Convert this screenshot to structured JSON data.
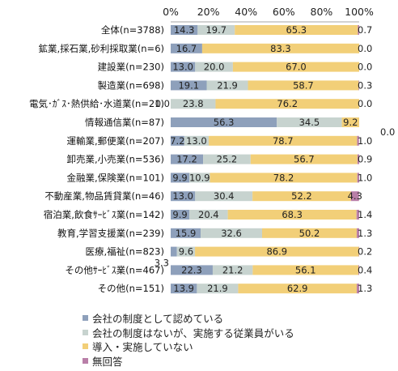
{
  "chart_data": {
    "type": "bar",
    "stacked": true,
    "orientation": "horizontal",
    "x_ticks": [
      "0%",
      "20%",
      "40%",
      "60%",
      "80%",
      "100%"
    ],
    "xlim": [
      0,
      100
    ],
    "grid": false,
    "legend_position": "bottom",
    "categories": [
      "全体(n=3788)",
      "鉱業,採石業,砂利採取業(n=6)",
      "建設業(n=230)",
      "製造業(n=698)",
      "電気･ｶﾞｽ･熱供給･水道業(n=21)",
      "情報通信業(n=87)",
      "運輸業,郵便業(n=207)",
      "卸売業,小売業(n=536)",
      "金融業,保険業(n=101)",
      "不動産業,物品賃貸業(n=46)",
      "宿泊業,飲食ｻｰﾋﾞｽ業(n=142)",
      "教育,学習支援業(n=239)",
      "医療,福祉(n=823)",
      "その他ｻｰﾋﾞｽ業(n=467)",
      "その他(n=151)"
    ],
    "series": [
      {
        "name": "会社の制度として認めている",
        "color": "#8ea0bb",
        "values": [
          14.3,
          16.7,
          13.0,
          19.1,
          0.0,
          56.3,
          7.2,
          17.2,
          9.9,
          13.0,
          9.9,
          15.9,
          3.3,
          22.3,
          13.9
        ],
        "labels": [
          "14.3",
          "16.7",
          "13.0",
          "19.1",
          "0.0",
          "56.3",
          "7.2",
          "17.2",
          "9.9",
          "13.0",
          "9.9",
          "15.9",
          "3.3",
          "22.3",
          "13.9"
        ]
      },
      {
        "name": "会社の制度はないが、実施する従業員がいる",
        "color": "#c7d3cf",
        "values": [
          19.7,
          0.0,
          20.0,
          21.9,
          23.8,
          34.5,
          13.0,
          25.2,
          10.9,
          30.4,
          20.4,
          32.6,
          9.6,
          21.2,
          21.9
        ],
        "labels": [
          "19.7",
          "0.0",
          "20.0",
          "21.9",
          "23.8",
          "34.5",
          "13.0",
          "25.2",
          "10.9",
          "30.4",
          "20.4",
          "32.6",
          "9.6",
          "21.2",
          "21.9"
        ]
      },
      {
        "name": "導入・実施していない",
        "color": "#f2cf78",
        "values": [
          65.3,
          83.3,
          67.0,
          58.7,
          76.2,
          9.2,
          78.7,
          56.7,
          78.2,
          52.2,
          68.3,
          50.2,
          86.9,
          56.1,
          62.9
        ],
        "labels": [
          "65.3",
          "83.3",
          "67.0",
          "58.7",
          "76.2",
          "9.2",
          "78.7",
          "56.7",
          "78.2",
          "52.2",
          "68.3",
          "50.2",
          "86.9",
          "56.1",
          "62.9"
        ]
      },
      {
        "name": "無回答",
        "color": "#b97fa8",
        "values": [
          0.7,
          0.0,
          0.0,
          0.3,
          0.0,
          0.0,
          1.0,
          0.9,
          1.0,
          4.3,
          1.4,
          1.3,
          0.2,
          0.4,
          1.3
        ],
        "labels": [
          "0.7",
          "0.0",
          "0.0",
          "0.3",
          "0.0",
          "0.0",
          "1.0",
          "0.9",
          "1.0",
          "4.3",
          "1.4",
          "1.3",
          "0.2",
          "0.4",
          "1.3"
        ]
      }
    ]
  }
}
